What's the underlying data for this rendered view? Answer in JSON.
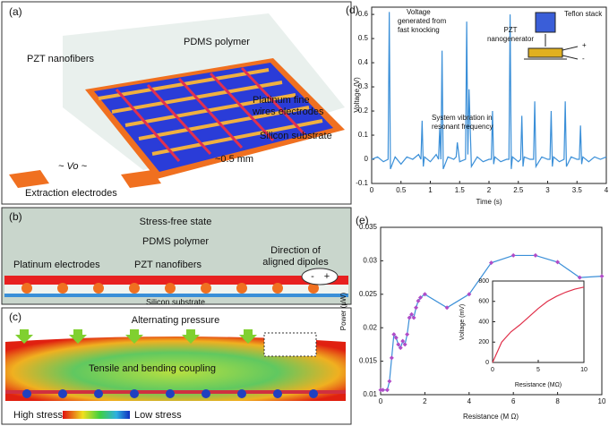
{
  "panels": {
    "a": {
      "label": "(a)",
      "pdms": "PDMS polymer",
      "pzt": "PZT nanofibers",
      "platinum": [
        "Platinum fine",
        "wires electrodes"
      ],
      "silicon": "Silicon substrate",
      "spacing": "~0.5 mm",
      "vo": "~  Vo  ~",
      "extraction": "Extraction electrodes"
    },
    "b": {
      "label": "(b)",
      "state": "Stress-free state",
      "pdms": "PDMS polymer",
      "dipoles": [
        "Direction of",
        "aligned dipoles"
      ],
      "minus": "-",
      "plus": "+",
      "platinum": "Platinum electrodes",
      "pzt": "PZT nanofibers",
      "silicon": "Silicon substrate"
    },
    "c": {
      "label": "(c)",
      "pressure": "Alternating pressure",
      "coupling": "Tensile and bending coupling",
      "high": "High stress",
      "low": "Low stress"
    }
  },
  "chart_data": [
    {
      "type": "line",
      "title": "(d)",
      "xlabel": "Time (s)",
      "ylabel": "Voltage (V)",
      "color": "#3a8fd8",
      "x": [
        0,
        0.1,
        0.2,
        0.28,
        0.3,
        0.32,
        0.4,
        0.5,
        0.6,
        0.7,
        0.8,
        0.84,
        0.86,
        0.88,
        0.9,
        1.0,
        1.1,
        1.14,
        1.16,
        1.18,
        1.2,
        1.22,
        1.3,
        1.4,
        1.44,
        1.46,
        1.5,
        1.6,
        1.62,
        1.64,
        1.66,
        1.7,
        1.8,
        1.9,
        2.0,
        2.04,
        2.06,
        2.08,
        2.1,
        2.2,
        2.3,
        2.34,
        2.36,
        2.38,
        2.4,
        2.5,
        2.54,
        2.56,
        2.58,
        2.6,
        2.7,
        2.76,
        2.78,
        2.8,
        2.9,
        3.0,
        3.04,
        3.06,
        3.08,
        3.1,
        3.2,
        3.28,
        3.3,
        3.32,
        3.4,
        3.5,
        3.54,
        3.56,
        3.58,
        3.6,
        3.7,
        3.8,
        3.9,
        4.0
      ],
      "values": [
        0,
        0.01,
        -0.01,
        0,
        0.61,
        -0.04,
        0.01,
        -0.02,
        0.01,
        0,
        0.02,
        0,
        0.16,
        -0.03,
        0.01,
        -0.01,
        0.02,
        0,
        0.13,
        0,
        0.45,
        -0.04,
        0.01,
        0,
        0.01,
        0.07,
        -0.01,
        0,
        0.57,
        0.02,
        0.29,
        -0.03,
        0.01,
        -0.01,
        0,
        0,
        0.2,
        -0.02,
        0.01,
        -0.01,
        0,
        0,
        0.6,
        -0.04,
        0.01,
        -0.01,
        0,
        0.18,
        -0.03,
        0.01,
        0,
        0,
        0.24,
        -0.03,
        0.01,
        0,
        0,
        0.2,
        -0.03,
        0.01,
        -0.01,
        0,
        0.24,
        -0.03,
        0.01,
        0,
        0,
        0.14,
        -0.02,
        0.01,
        -0.01,
        0.01,
        0,
        0.01
      ],
      "xlim": [
        0,
        4
      ],
      "ylim": [
        -0.1,
        0.63
      ],
      "xticks": [
        0,
        0.5,
        1,
        1.5,
        2,
        2.5,
        3,
        3.5,
        4
      ],
      "yticks": [
        -0.1,
        0,
        0.1,
        0.2,
        0.3,
        0.4,
        0.5,
        0.6
      ],
      "annotations": [
        [
          "Voltage",
          "generated from",
          "fast knocking"
        ],
        [
          "System vibration in",
          "resonant frequency"
        ],
        [
          "Teflon stack"
        ],
        [
          "PZT",
          "nanogenerator"
        ],
        [
          "+",
          "-"
        ]
      ]
    },
    {
      "type": "line",
      "title": "(e)",
      "xlabel": "Resistance (M Ω)",
      "ylabel": "Power (μW)",
      "color": "#3a8fd8",
      "marker": "diamond",
      "marker_color": "#b04cc8",
      "x": [
        0,
        0.1,
        0.3,
        0.4,
        0.5,
        0.6,
        0.7,
        0.8,
        0.9,
        1.0,
        1.1,
        1.2,
        1.3,
        1.4,
        1.5,
        1.6,
        1.7,
        1.8,
        2,
        3,
        4,
        5,
        6,
        7,
        8,
        9,
        10
      ],
      "values": [
        0.0107,
        0.0107,
        0.0107,
        0.012,
        0.0155,
        0.019,
        0.0185,
        0.0175,
        0.017,
        0.018,
        0.0175,
        0.019,
        0.0215,
        0.022,
        0.0215,
        0.023,
        0.024,
        0.0245,
        0.025,
        0.023,
        0.025,
        0.0297,
        0.0308,
        0.0308,
        0.0298,
        0.0275,
        0.0277
      ],
      "xlim": [
        0,
        10
      ],
      "ylim": [
        0.01,
        0.035
      ],
      "xticks": [
        0,
        2,
        4,
        6,
        8,
        10
      ],
      "yticks": [
        0.01,
        0.015,
        0.02,
        0.025,
        0.03,
        0.035
      ]
    },
    {
      "type": "line",
      "xlabel": "Resistance (MΩ)",
      "ylabel": "Voltage (mV)",
      "color": "#e0304a",
      "x": [
        0,
        0.5,
        1,
        2,
        3,
        4,
        5,
        6,
        7,
        8,
        9,
        10
      ],
      "values": [
        0,
        100,
        200,
        300,
        370,
        450,
        530,
        600,
        650,
        690,
        720,
        740
      ],
      "xlim": [
        0,
        10
      ],
      "ylim": [
        0,
        800
      ],
      "xticks": [
        0,
        5,
        10
      ],
      "yticks": [
        0,
        200,
        400,
        600,
        800
      ]
    }
  ]
}
